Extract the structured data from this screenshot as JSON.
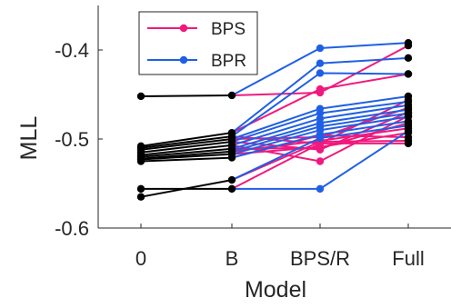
{
  "chart_data": {
    "type": "line",
    "xlabel": "Model",
    "ylabel": "MLL",
    "categories": [
      "0",
      "B",
      "BPS/R",
      "Full"
    ],
    "ylim": [
      -0.6,
      -0.35
    ],
    "yticks": [
      -0.6,
      -0.5,
      -0.4
    ],
    "ytick_labels": [
      "-0.6",
      "-0.5",
      "-0.4"
    ],
    "grid": false,
    "legend_position": "top-left",
    "legend": [
      {
        "label": "BPS",
        "color": "#f0197d"
      },
      {
        "label": "BPR",
        "color": "#1f5fe6"
      }
    ],
    "colors": {
      "baseline": "#000000",
      "BPS": "#f0197d",
      "BPR": "#1f5fe6",
      "axis": "#262626"
    },
    "baseline_segments": [
      [
        -0.452,
        -0.451
      ],
      [
        -0.508,
        -0.493
      ],
      [
        -0.51,
        -0.497
      ],
      [
        -0.512,
        -0.5
      ],
      [
        -0.515,
        -0.503
      ],
      [
        -0.518,
        -0.507
      ],
      [
        -0.52,
        -0.511
      ],
      [
        -0.522,
        -0.514
      ],
      [
        -0.523,
        -0.517
      ],
      [
        -0.525,
        -0.521
      ],
      [
        -0.556,
        -0.556
      ],
      [
        -0.565,
        -0.546
      ]
    ],
    "series": [
      {
        "name": "BPS",
        "values": [
          [
            -0.451,
            -0.448,
            -0.395
          ],
          [
            -0.493,
            -0.444,
            -0.427
          ],
          [
            -0.497,
            -0.505,
            -0.456
          ],
          [
            -0.5,
            -0.498,
            -0.465
          ],
          [
            -0.503,
            -0.512,
            -0.47
          ],
          [
            -0.507,
            -0.525,
            -0.474
          ],
          [
            -0.511,
            -0.51,
            -0.482
          ],
          [
            -0.514,
            -0.502,
            -0.488
          ],
          [
            -0.517,
            -0.509,
            -0.493
          ],
          [
            -0.521,
            -0.496,
            -0.498
          ],
          [
            -0.546,
            -0.503,
            -0.502
          ],
          [
            -0.556,
            -0.505,
            -0.505
          ]
        ]
      },
      {
        "name": "BPR",
        "values": [
          [
            -0.451,
            -0.398,
            -0.392
          ],
          [
            -0.493,
            -0.415,
            -0.409
          ],
          [
            -0.497,
            -0.426,
            -0.427
          ],
          [
            -0.5,
            -0.466,
            -0.452
          ],
          [
            -0.503,
            -0.471,
            -0.458
          ],
          [
            -0.507,
            -0.477,
            -0.462
          ],
          [
            -0.511,
            -0.482,
            -0.467
          ],
          [
            -0.514,
            -0.486,
            -0.471
          ],
          [
            -0.517,
            -0.49,
            -0.475
          ],
          [
            -0.521,
            -0.495,
            -0.48
          ],
          [
            -0.546,
            -0.499,
            -0.485
          ],
          [
            -0.556,
            -0.556,
            -0.491
          ]
        ]
      }
    ]
  }
}
